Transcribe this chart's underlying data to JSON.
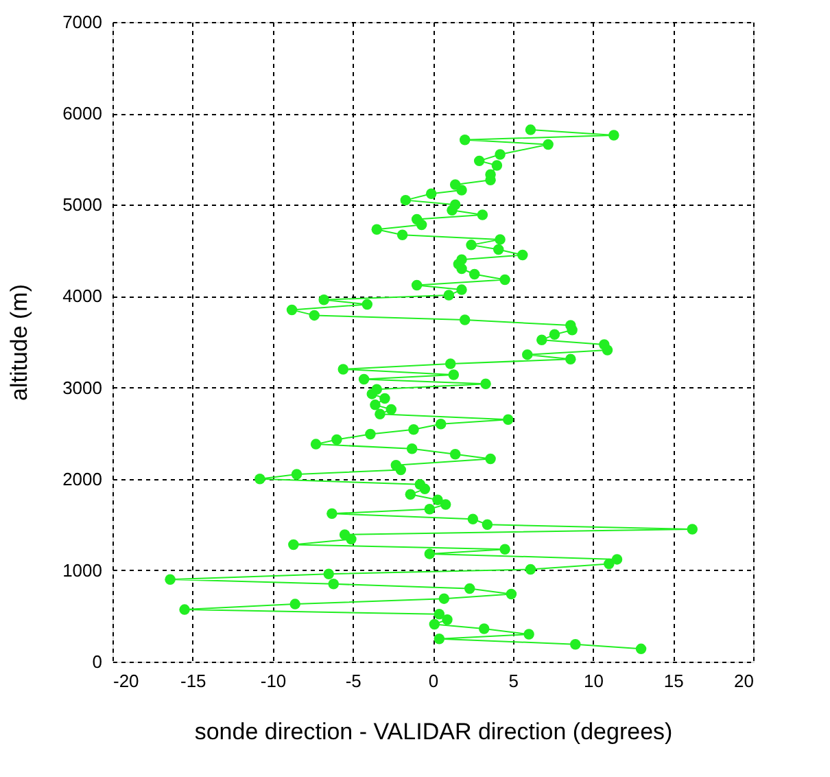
{
  "chart_data": {
    "type": "line",
    "xlabel": "sonde direction - VALIDAR direction (degrees)",
    "ylabel": "altitude (m)",
    "xlim": [
      -20,
      20
    ],
    "xticks": [
      -20,
      -15,
      -10,
      -5,
      0,
      5,
      10,
      15,
      20
    ],
    "ylim": [
      0,
      7000
    ],
    "yticks": [
      0,
      1000,
      2000,
      3000,
      4000,
      5000,
      6000,
      7000
    ],
    "grid": true,
    "marker": "circle",
    "line_style": "solid",
    "series": [
      {
        "color": "#22ee22",
        "x": [
          13.0,
          8.9,
          0.4,
          6.0,
          3.2,
          0.1,
          0.9,
          0.4,
          -15.5,
          -8.6,
          0.7,
          4.9,
          2.3,
          -6.2,
          -16.4,
          -6.5,
          6.1,
          11.0,
          11.5,
          -0.2,
          4.5,
          -8.7,
          -5.1,
          -5.5,
          16.2,
          3.4,
          2.5,
          -6.3,
          -0.2,
          0.8,
          0.3,
          -1.4,
          -0.5,
          -0.8,
          -10.8,
          -8.5,
          -2.0,
          -2.3,
          3.6,
          1.4,
          -1.3,
          -7.3,
          -6.0,
          -3.9,
          -1.2,
          0.5,
          4.7,
          -3.3,
          -2.6,
          -3.6,
          -3.0,
          -3.8,
          -3.5,
          3.3,
          -4.3,
          1.3,
          -5.6,
          1.1,
          8.6,
          5.9,
          10.9,
          10.7,
          6.8,
          7.6,
          8.7,
          8.6,
          2.0,
          -7.4,
          -8.8,
          -4.1,
          -6.8,
          1.0,
          1.8,
          -1.0,
          4.5,
          2.6,
          1.8,
          1.6,
          1.8,
          5.6,
          4.1,
          2.4,
          4.2,
          -1.9,
          -3.5,
          -0.7,
          -1.0,
          3.1,
          1.2,
          1.4,
          -1.7,
          -0.1,
          1.8,
          1.4,
          3.6,
          3.6,
          4.0,
          2.9,
          4.2,
          7.2,
          2.0,
          11.3,
          6.1
        ],
        "values": [
          140,
          190,
          250,
          300,
          360,
          410,
          460,
          520,
          570,
          630,
          690,
          740,
          800,
          850,
          900,
          960,
          1010,
          1070,
          1120,
          1180,
          1230,
          1280,
          1340,
          1390,
          1450,
          1500,
          1560,
          1620,
          1670,
          1720,
          1770,
          1830,
          1890,
          1940,
          2000,
          2050,
          2100,
          2150,
          2220,
          2270,
          2330,
          2380,
          2430,
          2490,
          2540,
          2600,
          2650,
          2710,
          2760,
          2810,
          2880,
          2930,
          2980,
          3040,
          3090,
          3140,
          3200,
          3260,
          3310,
          3360,
          3410,
          3470,
          3520,
          3580,
          3630,
          3680,
          3740,
          3790,
          3850,
          3910,
          3960,
          4010,
          4070,
          4120,
          4180,
          4240,
          4300,
          4350,
          4400,
          4450,
          4510,
          4560,
          4620,
          4670,
          4730,
          4780,
          4840,
          4890,
          4940,
          5000,
          5050,
          5120,
          5160,
          5220,
          5270,
          5330,
          5430,
          5480,
          5550,
          5660,
          5710,
          5760,
          5820
        ]
      }
    ]
  }
}
